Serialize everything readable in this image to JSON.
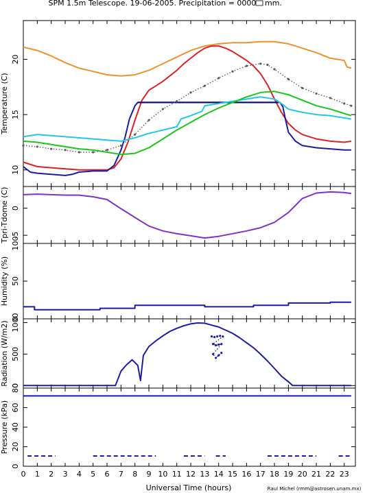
{
  "header": {
    "title": "SPM 1.5m Telescope. 19-06-2005. Precipitation = 0000",
    "title_unit": "mm."
  },
  "footer": {
    "credit": "Raul Michel (rmm@astrosen.unam.mx)"
  },
  "chart_data": [
    {
      "type": "line",
      "ylabel": "Temperature (C)",
      "ylim": [
        8.5,
        23.5
      ],
      "yticks": [
        "10",
        "15",
        "20"
      ],
      "ytick_values": [
        10,
        15,
        20
      ],
      "series": [
        {
          "color": "#f0902a",
          "style": "line",
          "x": [
            0,
            1,
            2,
            3,
            4,
            5,
            6,
            7,
            8,
            9,
            10,
            11,
            12,
            13,
            14,
            15,
            16,
            17,
            18,
            19,
            20,
            21,
            22,
            23,
            23.2,
            23.5
          ],
          "y": [
            21.1,
            20.8,
            20.3,
            19.7,
            19.2,
            18.9,
            18.6,
            18.5,
            18.6,
            19.0,
            19.6,
            20.2,
            20.8,
            21.2,
            21.4,
            21.5,
            21.5,
            21.6,
            21.6,
            21.4,
            21.0,
            20.6,
            20.1,
            19.9,
            19.3,
            19.2
          ]
        },
        {
          "color": "#e02020",
          "style": "line",
          "x": [
            0,
            1,
            2,
            3,
            4,
            5,
            6,
            6.5,
            7,
            7.5,
            8,
            8.5,
            9,
            9.5,
            10,
            10.5,
            11,
            11.5,
            12,
            12.5,
            13,
            13.5,
            14,
            14.5,
            15,
            15.5,
            16,
            16.5,
            17,
            17.5,
            18,
            18.5,
            19,
            19.5,
            20,
            20.5,
            21,
            22,
            23,
            23.5
          ],
          "y": [
            10.7,
            10.3,
            10.2,
            10.1,
            10.0,
            10.0,
            10.0,
            10.2,
            11.0,
            12.5,
            14.5,
            16.3,
            17.2,
            17.6,
            18.0,
            18.5,
            19.0,
            19.6,
            20.1,
            20.6,
            21.0,
            21.2,
            21.2,
            21.0,
            20.7,
            20.3,
            19.9,
            19.4,
            18.7,
            17.7,
            16.4,
            15.2,
            14.2,
            13.6,
            13.2,
            13.0,
            12.8,
            12.6,
            12.5,
            12.6
          ]
        },
        {
          "color": "#1a1aa6",
          "style": "line",
          "x": [
            0,
            0.5,
            1,
            2,
            3,
            3.5,
            4,
            5,
            6,
            6.5,
            7,
            7.3,
            7.6,
            8,
            8.2,
            8.4,
            18.4,
            18.6,
            18.8,
            19,
            19.5,
            20,
            21,
            22,
            23,
            23.5
          ],
          "y": [
            10.3,
            9.8,
            9.7,
            9.6,
            9.5,
            9.6,
            9.8,
            9.9,
            9.9,
            10.4,
            11.8,
            13.0,
            14.6,
            15.8,
            16.1,
            16.1,
            16.1,
            15.7,
            14.5,
            13.4,
            12.6,
            12.2,
            12.0,
            11.9,
            11.8,
            11.8
          ]
        },
        {
          "color": "#0a0a6a",
          "style": "line",
          "x": [
            8.2,
            18.3
          ],
          "y": [
            16.1,
            16.1
          ]
        },
        {
          "color": "#5a5a5a",
          "style": "dots",
          "x": [
            0,
            1,
            2,
            3,
            4,
            5,
            6,
            7,
            8,
            9,
            10,
            11,
            12,
            13,
            14,
            15,
            16,
            17,
            17.5,
            18,
            19,
            20,
            21,
            22,
            23,
            23.5
          ],
          "y": [
            12.2,
            12.1,
            11.9,
            11.8,
            11.6,
            11.6,
            11.8,
            12.2,
            13.2,
            14.5,
            15.5,
            16.2,
            17.0,
            17.6,
            18.3,
            18.9,
            19.4,
            19.6,
            19.5,
            19.1,
            18.2,
            17.4,
            16.9,
            16.5,
            16.0,
            15.8
          ]
        },
        {
          "color": "#20c8e8",
          "style": "line",
          "x": [
            0,
            1,
            2,
            3,
            4,
            5,
            6,
            7,
            8,
            9,
            10,
            11,
            11.3,
            12,
            12.8,
            13,
            14,
            15,
            16,
            17,
            18,
            18.5,
            19,
            20,
            21,
            22,
            23,
            23.5
          ],
          "y": [
            13.0,
            13.2,
            13.1,
            13.0,
            12.9,
            12.8,
            12.7,
            12.6,
            12.9,
            13.3,
            13.6,
            13.9,
            14.6,
            14.9,
            15.3,
            15.8,
            16.0,
            16.2,
            16.4,
            16.6,
            16.4,
            16.0,
            15.5,
            15.2,
            15.0,
            14.9,
            14.7,
            14.6
          ]
        },
        {
          "color": "#18c818",
          "style": "line",
          "x": [
            0,
            1,
            2,
            3,
            4,
            5,
            6,
            7,
            8,
            9,
            10,
            11,
            12,
            13,
            14,
            15,
            16,
            17,
            18,
            19,
            20,
            21,
            22,
            23,
            23.5
          ],
          "y": [
            12.6,
            12.5,
            12.3,
            12.1,
            11.9,
            11.8,
            11.6,
            11.4,
            11.5,
            12.0,
            12.8,
            13.6,
            14.3,
            15.0,
            15.6,
            16.1,
            16.6,
            17.0,
            17.1,
            16.8,
            16.3,
            15.8,
            15.5,
            15.1,
            14.9
          ]
        }
      ]
    },
    {
      "type": "line",
      "ylabel": "Tpri-Tdome (C)",
      "ylim": [
        -6.5,
        4
      ],
      "yticks": [
        "-5",
        "0"
      ],
      "ytick_values": [
        -5,
        0
      ],
      "series": [
        {
          "color": "#8030c8",
          "style": "line",
          "x": [
            0,
            1,
            2,
            3,
            4,
            5,
            6,
            7,
            8,
            9,
            10,
            11,
            12,
            13,
            14,
            15,
            16,
            17,
            18,
            19,
            20,
            21,
            22,
            23,
            23.5
          ],
          "y": [
            2.5,
            2.6,
            2.5,
            2.4,
            2.4,
            2.1,
            1.6,
            -0.1,
            -1.7,
            -3.3,
            -4.2,
            -4.7,
            -5.1,
            -5.5,
            -5.2,
            -4.7,
            -4.2,
            -3.6,
            -2.6,
            -0.8,
            1.8,
            2.8,
            3.0,
            2.9,
            2.7
          ]
        }
      ]
    },
    {
      "type": "scatter",
      "ylabel": "Humidity (%)",
      "ylim": [
        0,
        100
      ],
      "yticks": [
        "0",
        "50",
        "100"
      ],
      "ytick_values": [
        0,
        50,
        100
      ],
      "series": [
        {
          "color": "#1a1aa6",
          "style": "line",
          "x": [
            0,
            0.8,
            0.8,
            5.5,
            5.5,
            8.0,
            8.0,
            13.0,
            13.0,
            16.5,
            16.5,
            19.0,
            19.0,
            22.0,
            22.0,
            23.5
          ],
          "y": [
            16,
            16,
            12,
            12,
            14,
            14,
            18,
            18,
            16,
            16,
            18,
            18,
            21,
            21,
            22,
            22
          ]
        }
      ]
    },
    {
      "type": "line",
      "ylabel": "Radiation (W/m2)",
      "ylim": [
        -40,
        1060
      ],
      "yticks": [
        "0",
        "500",
        "1000"
      ],
      "ytick_values": [
        0,
        500,
        1000
      ],
      "series": [
        {
          "color": "#1a1aa6",
          "style": "line",
          "x": [
            0,
            6.6,
            7.0,
            7.4,
            7.8,
            8.2,
            8.4,
            8.6,
            9,
            9.5,
            10,
            10.5,
            11,
            11.5,
            12,
            12.5,
            13,
            13.5,
            14,
            14.5,
            15,
            15.5,
            16,
            16.5,
            17,
            17.5,
            18,
            18.5,
            19,
            19.3,
            23.5
          ],
          "y": [
            0,
            0,
            230,
            330,
            410,
            320,
            80,
            480,
            620,
            710,
            790,
            860,
            910,
            950,
            980,
            995,
            990,
            960,
            930,
            880,
            830,
            760,
            680,
            600,
            500,
            390,
            270,
            150,
            60,
            0,
            0
          ]
        },
        {
          "color": "#1a1aa6",
          "style": "dots",
          "x": [
            13.5,
            13.7,
            13.9,
            14.1,
            14.3,
            13.6,
            13.8,
            14.0,
            14.2,
            13.6,
            13.8,
            14.0,
            14.2
          ],
          "y": [
            780,
            770,
            780,
            790,
            780,
            660,
            640,
            650,
            660,
            500,
            440,
            480,
            520
          ]
        }
      ]
    },
    {
      "type": "scatter",
      "ylabel": "Pressure (kPa)",
      "ylim": [
        0,
        80
      ],
      "yticks": [
        "0",
        "20",
        "40",
        "60",
        "80"
      ],
      "ytick_values": [
        0,
        20,
        40,
        60,
        80
      ],
      "xlabel": "Universal Time (hours)",
      "xticks": [
        "0",
        "1",
        "2",
        "3",
        "4",
        "5",
        "6",
        "7",
        "8",
        "9",
        "10",
        "11",
        "12",
        "13",
        "14",
        "15",
        "16",
        "17",
        "18",
        "19",
        "20",
        "21",
        "22",
        "23"
      ],
      "xlim": [
        0,
        23.8
      ],
      "series": [
        {
          "color": "#1a1aa6",
          "style": "line",
          "x": [
            0,
            23.5
          ],
          "y": [
            72,
            72
          ]
        },
        {
          "color": "#1a1aa6",
          "style": "dashed",
          "x": [
            0.3,
            2.3
          ],
          "y": [
            10.5,
            10.5
          ]
        },
        {
          "color": "#1a1aa6",
          "style": "dashed",
          "x": [
            5.0,
            9.5
          ],
          "y": [
            10.5,
            10.5
          ]
        },
        {
          "color": "#1a1aa6",
          "style": "dashed",
          "x": [
            11.5,
            13.0
          ],
          "y": [
            10.5,
            10.5
          ]
        },
        {
          "color": "#1a1aa6",
          "style": "dashed",
          "x": [
            13.8,
            14.5
          ],
          "y": [
            10.5,
            10.5
          ]
        },
        {
          "color": "#1a1aa6",
          "style": "dashed",
          "x": [
            17.5,
            21.0
          ],
          "y": [
            10.5,
            10.5
          ]
        },
        {
          "color": "#1a1aa6",
          "style": "dashed",
          "x": [
            22.6,
            23.5
          ],
          "y": [
            10.5,
            10.5
          ]
        }
      ]
    }
  ]
}
